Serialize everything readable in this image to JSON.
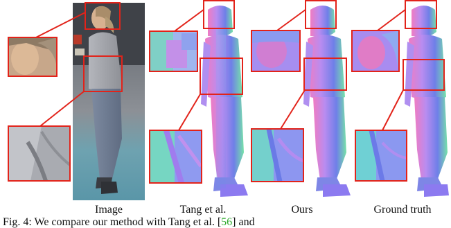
{
  "figure": {
    "columns": [
      {
        "id": "image",
        "label": "Image"
      },
      {
        "id": "tang",
        "label": "Tang et al."
      },
      {
        "id": "ours",
        "label": "Ours"
      },
      {
        "id": "gt",
        "label": "Ground truth"
      }
    ],
    "caption": {
      "prefix": "Fig. 4: We compare our method with Tang et al. [",
      "ref": "56",
      "suffix": "] and"
    },
    "colors": {
      "highlight_box": "#e2231a",
      "normal_blue": "#6f7fe8",
      "normal_purple": "#b98cf0",
      "normal_pink": "#f07cc2",
      "normal_green": "#76e2a8",
      "citation": "#2eaa2e"
    }
  }
}
